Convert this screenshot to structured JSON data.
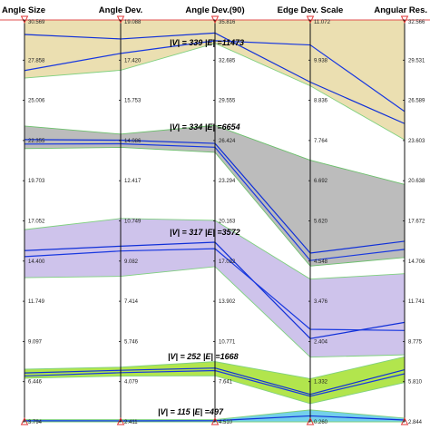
{
  "chart_data": {
    "type": "parallel-coordinates",
    "axes": [
      "Angle Size",
      "Angle Dev.",
      "Angle Dev.(90)",
      "Edge Dev. Scale",
      "Angular Res."
    ],
    "ticks": [
      [
        "30.569",
        "27.858",
        "25.006",
        "22.355",
        "19.703",
        "17.052",
        "14.400",
        "11.749",
        "9.097",
        "6.446",
        "3.794"
      ],
      [
        "19.088",
        "17.420",
        "15.753",
        "14.086",
        "12.417",
        "10.749",
        "9.082",
        "7.414",
        "5.746",
        "4.079",
        "2.411"
      ],
      [
        "35.816",
        "32.685",
        "29.555",
        "26.424",
        "23.294",
        "20.163",
        "17.032",
        "13.902",
        "10.771",
        "7.641",
        "4.510"
      ],
      [
        "11.072",
        "9.938",
        "8.836",
        "7.764",
        "6.692",
        "5.620",
        "4.548",
        "3.476",
        "2.404",
        "1.332",
        "0.260"
      ],
      [
        "32.566",
        "29.531",
        "26.589",
        "23.603",
        "20.638",
        "17.672",
        "14.706",
        "11.741",
        "8.775",
        "5.810",
        "2.844"
      ]
    ],
    "groups": [
      {
        "label": "|V| = 339 |E| =11473",
        "color": "#e8d9a3",
        "upper": [
          30.569,
          19.088,
          35.816,
          11.072,
          32.566
        ],
        "lower": [
          26.7,
          17.0,
          34.0,
          9.3,
          23.7
        ],
        "lines": [
          [
            29.6,
            18.3,
            34.8,
            9.4,
            24.9
          ],
          [
            27.2,
            17.7,
            34.2,
            10.4,
            25.8
          ]
        ]
      },
      {
        "label": "|V| = 334 |E| =6654",
        "color": "#b0b0b0",
        "upper": [
          23.5,
          14.35,
          27.6,
          7.3,
          20.4
        ],
        "lower": [
          22.0,
          13.8,
          25.5,
          4.45,
          15.0
        ],
        "lines": [
          [
            22.6,
            14.1,
            26.2,
            4.8,
            16.2
          ],
          [
            22.3,
            13.95,
            25.9,
            4.6,
            15.6
          ]
        ]
      },
      {
        "label": "|V| = 317 |E| =3572",
        "color": "#c6b8e8",
        "upper": [
          16.6,
          10.85,
          20.2,
          4.1,
          13.8
        ],
        "lower": [
          13.4,
          8.45,
          16.6,
          2.0,
          7.8
        ],
        "lines": [
          [
            15.2,
            9.7,
            18.5,
            2.5,
            10.2
          ],
          [
            14.8,
            9.5,
            18.0,
            2.75,
            9.6
          ]
        ]
      },
      {
        "label": "|V| = 252 |E| =1668",
        "color": "#a4e02e",
        "upper": [
          7.3,
          4.68,
          9.2,
          1.42,
          7.65
        ],
        "lower": [
          6.7,
          4.31,
          8.1,
          0.75,
          5.75
        ],
        "lines": [
          [
            7.05,
            4.55,
            8.7,
            1.0,
            6.7
          ],
          [
            6.85,
            4.45,
            8.5,
            0.95,
            6.4
          ]
        ]
      },
      {
        "label": "|V| = 115 |E| =497",
        "color": "#5bc8e8",
        "upper": [
          3.94,
          2.5,
          4.68,
          0.58,
          3.12
        ],
        "lower": [
          3.794,
          2.411,
          4.51,
          0.26,
          2.844
        ],
        "lines": [
          [
            3.86,
            2.45,
            4.6,
            0.42,
            2.98
          ]
        ]
      }
    ]
  }
}
